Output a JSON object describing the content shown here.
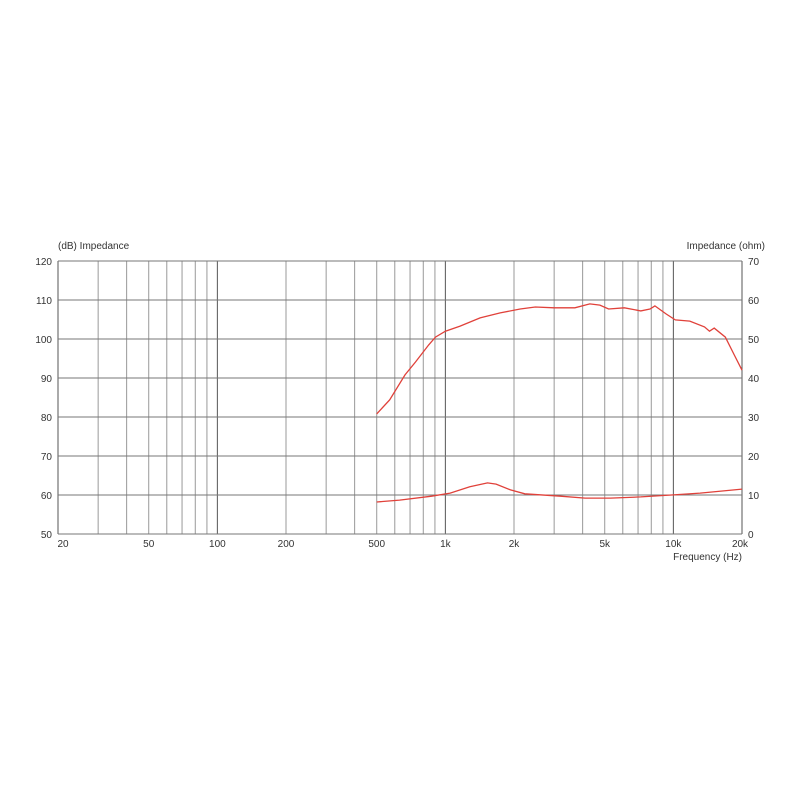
{
  "chart_data": {
    "type": "line",
    "left_axis_label": "(dB)  Impedance",
    "right_axis_label": "Impedance (ohm)",
    "xlabel": "Frequency (Hz)",
    "x_scale": "log",
    "xlim": [
      20,
      20000
    ],
    "ylim_left": [
      50,
      120
    ],
    "ylim_right": [
      0,
      70
    ],
    "grid": true,
    "x_ticks": [
      {
        "v": 20,
        "label": "20"
      },
      {
        "v": 50,
        "label": "50"
      },
      {
        "v": 100,
        "label": "100"
      },
      {
        "v": 200,
        "label": "200"
      },
      {
        "v": 500,
        "label": "500"
      },
      {
        "v": 1000,
        "label": "1k"
      },
      {
        "v": 2000,
        "label": "2k"
      },
      {
        "v": 5000,
        "label": "5k"
      },
      {
        "v": 10000,
        "label": "10k"
      },
      {
        "v": 20000,
        "label": "20k"
      }
    ],
    "y_ticks_left": [
      120,
      110,
      100,
      90,
      80,
      70,
      60,
      50
    ],
    "y_ticks_right": [
      70,
      60,
      50,
      40,
      30,
      20,
      10,
      0
    ],
    "line_color": "#e0413a",
    "series": [
      {
        "axis": "left",
        "x": [
          500,
          570,
          665,
          740,
          845,
          905,
          1000,
          1160,
          1420,
          1740,
          2130,
          2480,
          3000,
          3700,
          4300,
          4760,
          5200,
          6100,
          7200,
          7900,
          8300,
          9300,
          10200,
          11800,
          13700,
          14400,
          15100,
          16900,
          18500,
          20000
        ],
        "y": [
          80.8,
          84.4,
          90.8,
          94.1,
          98.5,
          100.5,
          102,
          103.3,
          105.4,
          106.7,
          107.7,
          108.2,
          108,
          108,
          109,
          108.7,
          107.7,
          108,
          107.2,
          107.7,
          108.5,
          106.4,
          104.9,
          104.6,
          103.1,
          102,
          102.8,
          100.5,
          95.9,
          92
        ]
      },
      {
        "axis": "right",
        "x": [
          500,
          630,
          870,
          1050,
          1280,
          1530,
          1670,
          1930,
          2230,
          3200,
          4100,
          5300,
          7200,
          9800,
          13100,
          20000
        ],
        "y": [
          8.2,
          8.7,
          9.7,
          10.5,
          12.1,
          13.1,
          12.8,
          11.3,
          10.3,
          9.7,
          9.2,
          9.2,
          9.5,
          10,
          10.5,
          11.5
        ]
      }
    ]
  }
}
